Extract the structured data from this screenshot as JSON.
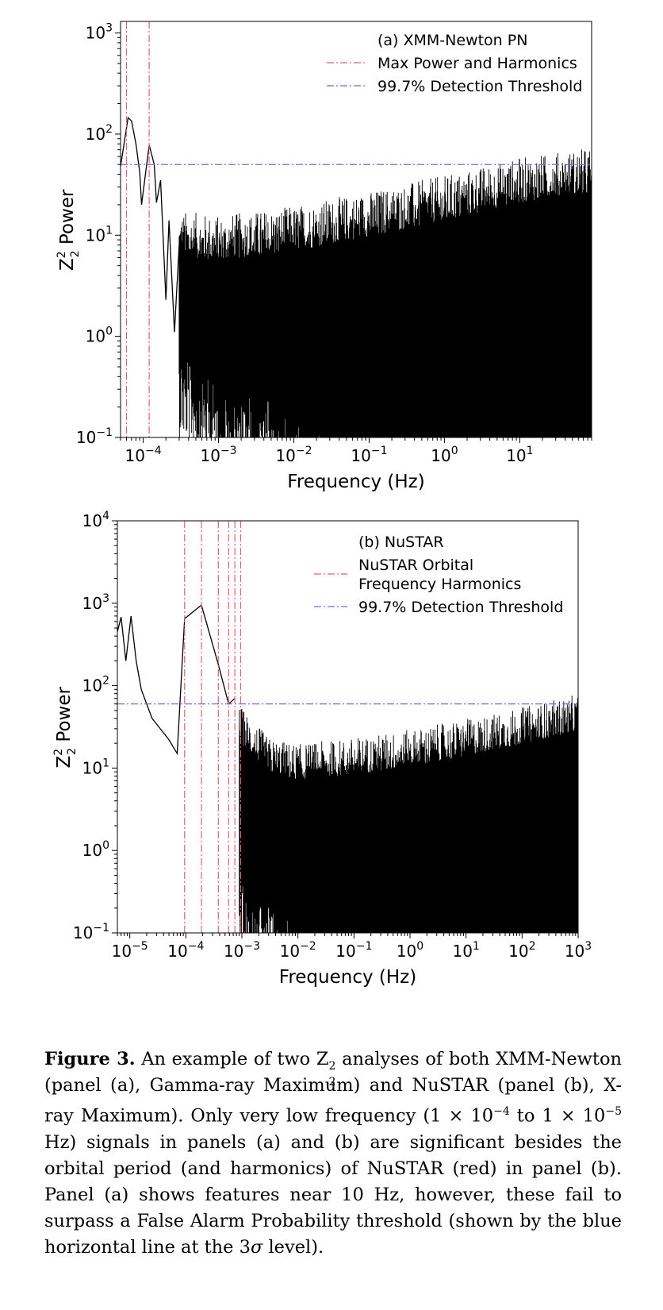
{
  "chart_data": [
    {
      "type": "line",
      "panel": "a",
      "xscale": "log",
      "yscale": "log",
      "xlim": [
        5e-05,
        90
      ],
      "ylim": [
        0.1,
        1300
      ],
      "xlabel": "Frequency (Hz)",
      "ylabel_main": "Z",
      "ylabel_sup": "2",
      "ylabel_sub": "2",
      "ylabel_rest": " Power",
      "xticks": [
        {
          "value": 0.0001,
          "base": "10",
          "exp": "−4"
        },
        {
          "value": 0.001,
          "base": "10",
          "exp": "−3"
        },
        {
          "value": 0.01,
          "base": "10",
          "exp": "−2"
        },
        {
          "value": 0.1,
          "base": "10",
          "exp": "−1"
        },
        {
          "value": 1,
          "base": "10",
          "exp": "0"
        },
        {
          "value": 10,
          "base": "10",
          "exp": "1"
        }
      ],
      "yticks": [
        {
          "value": 0.1,
          "base": "10",
          "exp": "−1"
        },
        {
          "value": 1,
          "base": "10",
          "exp": "0"
        },
        {
          "value": 10,
          "base": "10",
          "exp": "1"
        },
        {
          "value": 100,
          "base": "10",
          "exp": "2"
        },
        {
          "value": 1000,
          "base": "10",
          "exp": "3"
        }
      ],
      "legend_title": "(a) XMM-Newton PN",
      "legend_position": "top-right",
      "series": [
        {
          "name": "Max Power and Harmonics",
          "style": "dash-dot",
          "color": "#e8606e",
          "orientation": "vertical",
          "x": [
            6e-05,
            0.00012
          ]
        },
        {
          "name": "99.7% Detection Threshold",
          "style": "dash-dot",
          "color": "#6a6ae8",
          "orientation": "horizontal",
          "y": 50
        }
      ],
      "power_spectrum": {
        "color": "#000000",
        "peaks": [
          {
            "x": 5e-05,
            "y": 48
          },
          {
            "x": 6.3e-05,
            "y": 145
          },
          {
            "x": 7e-05,
            "y": 135
          },
          {
            "x": 8e-05,
            "y": 80
          },
          {
            "x": 9e-05,
            "y": 42
          },
          {
            "x": 9.5e-05,
            "y": 20
          },
          {
            "x": 0.00012,
            "y": 78
          },
          {
            "x": 0.00014,
            "y": 50
          },
          {
            "x": 0.00015,
            "y": 21
          },
          {
            "x": 0.00017,
            "y": 35
          },
          {
            "x": 0.0002,
            "y": 2.3
          },
          {
            "x": 0.00022,
            "y": 14
          },
          {
            "x": 0.00026,
            "y": 1.1
          },
          {
            "x": 0.0003,
            "y": 8
          }
        ],
        "upper_envelope": [
          {
            "x": 0.0003,
            "y": 9
          },
          {
            "x": 0.001,
            "y": 8
          },
          {
            "x": 0.01,
            "y": 10
          },
          {
            "x": 0.1,
            "y": 14
          },
          {
            "x": 1,
            "y": 20
          },
          {
            "x": 10,
            "y": 30
          },
          {
            "x": 90,
            "y": 38
          }
        ],
        "lower_envelope": [
          {
            "x": 0.0003,
            "y": 0.8
          },
          {
            "x": 0.001,
            "y": 0.4
          },
          {
            "x": 0.01,
            "y": 0.18
          },
          {
            "x": 0.03,
            "y": 0.1
          }
        ]
      }
    },
    {
      "type": "line",
      "panel": "b",
      "xscale": "log",
      "yscale": "log",
      "xlim": [
        6e-06,
        1000
      ],
      "ylim": [
        0.1,
        10000
      ],
      "xlabel": "Frequency (Hz)",
      "ylabel_main": "Z",
      "ylabel_sup": "2",
      "ylabel_sub": "2",
      "ylabel_rest": " Power",
      "xticks": [
        {
          "value": 1e-05,
          "base": "10",
          "exp": "−5"
        },
        {
          "value": 0.0001,
          "base": "10",
          "exp": "−4"
        },
        {
          "value": 0.001,
          "base": "10",
          "exp": "−3"
        },
        {
          "value": 0.01,
          "base": "10",
          "exp": "−2"
        },
        {
          "value": 0.1,
          "base": "10",
          "exp": "−1"
        },
        {
          "value": 1,
          "base": "10",
          "exp": "0"
        },
        {
          "value": 10,
          "base": "10",
          "exp": "1"
        },
        {
          "value": 100,
          "base": "10",
          "exp": "2"
        },
        {
          "value": 1000,
          "base": "10",
          "exp": "3"
        }
      ],
      "yticks": [
        {
          "value": 0.1,
          "base": "10",
          "exp": "−1"
        },
        {
          "value": 1,
          "base": "10",
          "exp": "0"
        },
        {
          "value": 10,
          "base": "10",
          "exp": "1"
        },
        {
          "value": 100,
          "base": "10",
          "exp": "2"
        },
        {
          "value": 1000,
          "base": "10",
          "exp": "3"
        },
        {
          "value": 10000,
          "base": "10",
          "exp": "4"
        }
      ],
      "legend_title": "(b) NuSTAR",
      "legend_position": "top-right",
      "series": [
        {
          "name_lines": [
            "NuSTAR Orbital",
            "Frequency Harmonics"
          ],
          "style": "dash-dot",
          "color": "#e8606e",
          "orientation": "vertical",
          "x": [
            9.5e-05,
            0.00019,
            0.00038,
            0.00058,
            0.00075,
            0.00095
          ]
        },
        {
          "name": "99.7% Detection Threshold",
          "style": "dash-dot",
          "color": "#6a6ae8",
          "orientation": "horizontal",
          "y": 60
        }
      ],
      "power_spectrum": {
        "color": "#000000",
        "peaks": [
          {
            "x": 6e-06,
            "y": 450
          },
          {
            "x": 7e-06,
            "y": 680
          },
          {
            "x": 8.5e-06,
            "y": 200
          },
          {
            "x": 1.05e-05,
            "y": 700
          },
          {
            "x": 1.3e-05,
            "y": 200
          },
          {
            "x": 1.6e-05,
            "y": 90
          },
          {
            "x": 2e-05,
            "y": 60
          },
          {
            "x": 2.5e-05,
            "y": 40
          },
          {
            "x": 3.5e-05,
            "y": 30
          },
          {
            "x": 5e-05,
            "y": 22
          },
          {
            "x": 7e-05,
            "y": 15
          },
          {
            "x": 9.5e-05,
            "y": 650
          },
          {
            "x": 0.00019,
            "y": 950
          },
          {
            "x": 0.00038,
            "y": 180
          },
          {
            "x": 0.00058,
            "y": 60
          },
          {
            "x": 0.00075,
            "y": 70
          }
        ],
        "upper_envelope": [
          {
            "x": 0.0009,
            "y": 30
          },
          {
            "x": 0.003,
            "y": 12
          },
          {
            "x": 0.01,
            "y": 10
          },
          {
            "x": 0.1,
            "y": 12
          },
          {
            "x": 1,
            "y": 15
          },
          {
            "x": 10,
            "y": 20
          },
          {
            "x": 100,
            "y": 28
          },
          {
            "x": 1000,
            "y": 40
          }
        ],
        "lower_envelope": [
          {
            "x": 0.0001,
            "y": 3
          },
          {
            "x": 0.001,
            "y": 0.5
          },
          {
            "x": 0.01,
            "y": 0.15
          },
          {
            "x": 0.03,
            "y": 0.1
          }
        ]
      }
    }
  ],
  "caption": {
    "label": "Figure 3.",
    "p1": "An example of two Z",
    "sup1": "2",
    "sub1": "2",
    "p2": " analyses of both XMM-Newton (panel (a), Gamma-ray Maximum) and NuSTAR (panel (b), X-ray Maximum).  Only very low frequency (1 × 10",
    "exp1": "−4",
    "p3": " to 1 × 10",
    "exp2": "−5",
    "p4": " Hz) signals in panels (a) and (b) are significant besides the orbital period (and harmonics) of NuSTAR (red) in panel (b). Panel (a) shows features near 10 Hz, however, these fail to surpass a False Alarm Probability threshold (shown by the blue horizontal line at the 3",
    "sigma": "σ",
    "p5": " level)."
  }
}
